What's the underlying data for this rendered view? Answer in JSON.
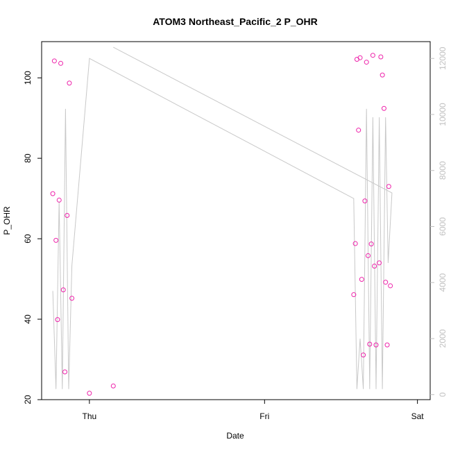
{
  "chart_data": {
    "type": "scatter",
    "title": "ATOM3 Northeast_Pacific_2 P_OHR",
    "xlabel": "Date",
    "ylabel": "P_OHR",
    "x_ticks": [
      "Thu",
      "Fri",
      "Sat"
    ],
    "y_ticks": [
      "20",
      "40",
      "60",
      "80",
      "100"
    ],
    "y2_ticks": [
      "0",
      "2000",
      "4000",
      "6000",
      "8000",
      "10000",
      "12000"
    ],
    "xlim": [
      -0.2,
      1.02
    ],
    "ylim": [
      20,
      109
    ],
    "y2lim": [
      -180,
      12600
    ],
    "grid": false,
    "legend": "none",
    "colors": {
      "points": "#ee22aa",
      "line": "#c8c8c8",
      "right_axis": "#c0c0c0",
      "axes": "#000000"
    },
    "series": [
      {
        "type": "scatter",
        "axis": "left",
        "points": [
          {
            "x": -0.165,
            "y": 71.2
          },
          {
            "x": -0.16,
            "y": 104.2
          },
          {
            "x": -0.155,
            "y": 59.6
          },
          {
            "x": -0.15,
            "y": 39.9
          },
          {
            "x": -0.145,
            "y": 69.6
          },
          {
            "x": -0.14,
            "y": 103.6
          },
          {
            "x": -0.132,
            "y": 47.3
          },
          {
            "x": -0.127,
            "y": 26.9
          },
          {
            "x": -0.12,
            "y": 65.8
          },
          {
            "x": -0.113,
            "y": 98.7
          },
          {
            "x": -0.105,
            "y": 45.2
          },
          {
            "x": -0.05,
            "y": 21.6
          },
          {
            "x": 0.025,
            "y": 23.4
          },
          {
            "x": 0.78,
            "y": 46.1
          },
          {
            "x": 0.785,
            "y": 58.8
          },
          {
            "x": 0.79,
            "y": 104.6
          },
          {
            "x": 0.795,
            "y": 87.0
          },
          {
            "x": 0.8,
            "y": 105.0
          },
          {
            "x": 0.805,
            "y": 49.9
          },
          {
            "x": 0.81,
            "y": 31.1
          },
          {
            "x": 0.815,
            "y": 69.4
          },
          {
            "x": 0.82,
            "y": 103.9
          },
          {
            "x": 0.825,
            "y": 55.8
          },
          {
            "x": 0.83,
            "y": 33.8
          },
          {
            "x": 0.835,
            "y": 58.7
          },
          {
            "x": 0.84,
            "y": 105.6
          },
          {
            "x": 0.845,
            "y": 53.2
          },
          {
            "x": 0.85,
            "y": 33.6
          },
          {
            "x": 0.86,
            "y": 54.0
          },
          {
            "x": 0.865,
            "y": 105.2
          },
          {
            "x": 0.87,
            "y": 100.7
          },
          {
            "x": 0.875,
            "y": 92.4
          },
          {
            "x": 0.88,
            "y": 49.2
          },
          {
            "x": 0.885,
            "y": 33.6
          },
          {
            "x": 0.89,
            "y": 73.0
          },
          {
            "x": 0.895,
            "y": 48.3
          }
        ]
      },
      {
        "type": "line",
        "axis": "right",
        "points": [
          {
            "x": -0.165,
            "y": 3700
          },
          {
            "x": -0.155,
            "y": 200
          },
          {
            "x": -0.145,
            "y": 6900
          },
          {
            "x": -0.135,
            "y": 200
          },
          {
            "x": -0.125,
            "y": 10200
          },
          {
            "x": -0.115,
            "y": 200
          },
          {
            "x": -0.105,
            "y": 4600
          },
          {
            "x": -0.05,
            "y": 12000
          },
          {
            "x": 0.78,
            "y": 7000
          },
          {
            "x": 0.79,
            "y": 200
          },
          {
            "x": 0.8,
            "y": 2000
          },
          {
            "x": 0.81,
            "y": 200
          },
          {
            "x": 0.82,
            "y": 10200
          },
          {
            "x": 0.83,
            "y": 200
          },
          {
            "x": 0.84,
            "y": 9900
          },
          {
            "x": 0.85,
            "y": 200
          },
          {
            "x": 0.86,
            "y": 9900
          },
          {
            "x": 0.87,
            "y": 200
          },
          {
            "x": 0.88,
            "y": 9900
          },
          {
            "x": 0.888,
            "y": 4700
          },
          {
            "x": 0.9,
            "y": 7200
          },
          {
            "x": 0.025,
            "y": 12400
          }
        ]
      }
    ]
  }
}
